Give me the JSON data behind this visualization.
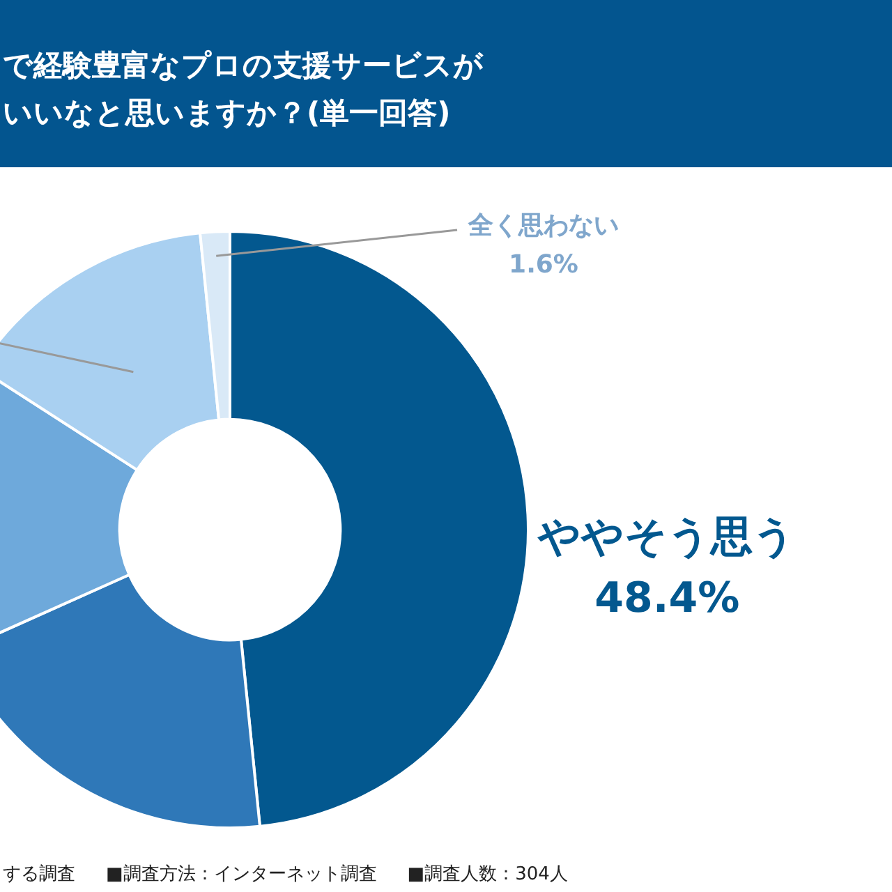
{
  "chart_data": {
    "type": "donut",
    "title": "で経験豊富なプロの支援サービスが",
    "subtitle": "いいなと思いますか？(単一回答)",
    "categories": [
      "ややそう思う",
      null,
      null,
      null,
      "全く思わない"
    ],
    "values": [
      48.4,
      19.9,
      15.8,
      14.3,
      1.6
    ],
    "value_labels": [
      "48.4%",
      null,
      null,
      null,
      "1.6%"
    ],
    "colors": [
      "#03588f",
      "#2f78b8",
      "#6ea9db",
      "#a9d0f1",
      "#d9e9f7"
    ],
    "legend": false,
    "annotations": [
      "する調査",
      "■調査方法：インターネット調査",
      "■調査人数：304人"
    ]
  }
}
